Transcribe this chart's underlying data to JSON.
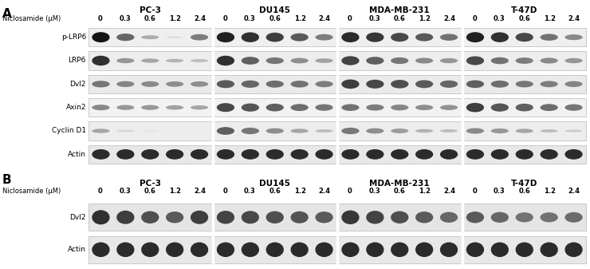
{
  "panel_A_label": "A",
  "panel_B_label": "B",
  "cell_lines": [
    "PC-3",
    "DU145",
    "MDA-MB-231",
    "T-47D"
  ],
  "doses": [
    "0",
    "0.3",
    "0.6",
    "1.2",
    "2.4"
  ],
  "niclosamide_label": "Niclosamide (μM)",
  "panel_A_proteins": [
    "p-LRP6",
    "LRP6",
    "Dvl2",
    "Axin2",
    "Cyclin D1",
    "Actin"
  ],
  "panel_B_proteins": [
    "Dvl2",
    "Actin"
  ],
  "bg_color": "#ffffff",
  "font_size_protein": 6.5,
  "font_size_dose": 6.0,
  "font_size_nic": 6.0,
  "font_size_cell": 7.5,
  "font_size_panel": 11
}
